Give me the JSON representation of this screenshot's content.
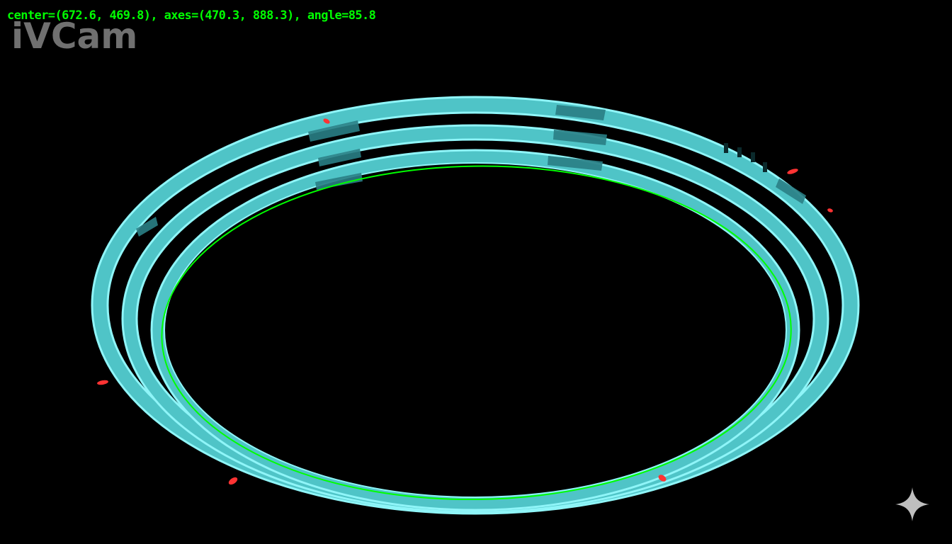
{
  "overlay": {
    "ellipse_info": "center=(672.6, 469.8), axes=(470.3, 888.3), angle=85.8",
    "watermark": "iVCam"
  },
  "colors": {
    "background": "#000000",
    "ring_fill": "#4fc4c7",
    "ring_edge": "#8ff5f8",
    "ring_dark_segment": "#2a7f85",
    "fit_ellipse": "#00ff00",
    "markers": "#ff3333",
    "text_overlay": "#00ff00",
    "watermark": "#969696"
  },
  "icons": {
    "corner": "sparkle-icon"
  }
}
